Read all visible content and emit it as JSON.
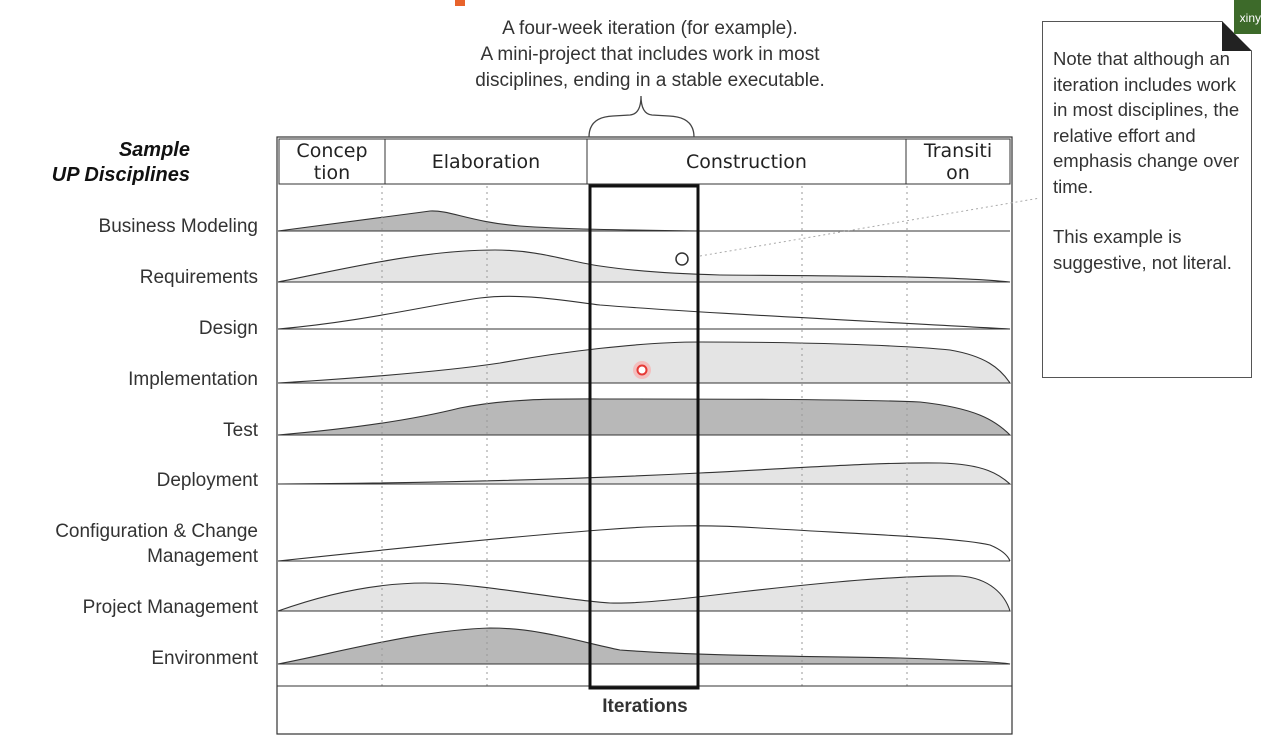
{
  "top_note": {
    "lines": [
      "A four-week iteration (for example).",
      "A mini-project that includes work in most",
      "disciplines, ending in a stable executable."
    ]
  },
  "disciplines_title": {
    "line1": "Sample",
    "line2": "UP Disciplines"
  },
  "phases": [
    {
      "label": "Concep\ntion"
    },
    {
      "label": "Elaboration"
    },
    {
      "label": "Construction"
    },
    {
      "label": "Transiti\non"
    }
  ],
  "disciplines": [
    {
      "label": "Business Modeling"
    },
    {
      "label": "Requirements"
    },
    {
      "label": "Design"
    },
    {
      "label": "Implementation"
    },
    {
      "label": "Test"
    },
    {
      "label": "Deployment"
    },
    {
      "label": "Configuration & Change\nManagement"
    },
    {
      "label": "Project Management"
    },
    {
      "label": "Environment"
    }
  ],
  "side_note": {
    "paragraph1": "Note that although an iteration includes work in most disciplines, the relative effort and emphasis change over time.",
    "paragraph2": "This example is suggestive, not literal."
  },
  "iterations_label": "Iterations",
  "badge_text": "xiny",
  "colors": {
    "fill_dark": "#b8b8b8",
    "fill_light": "#e4e4e4",
    "stroke": "#333333",
    "pointer_red": "#e53935"
  }
}
